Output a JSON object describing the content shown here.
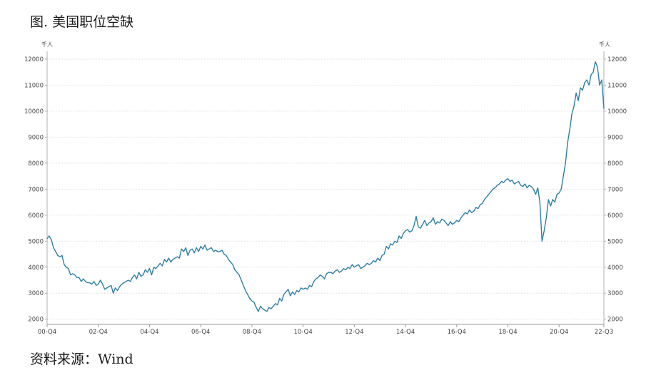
{
  "figure": {
    "title": "图. 美国职位空缺",
    "source": "资料来源：Wind"
  },
  "chart_data": {
    "type": "line",
    "title": "图. 美国职位空缺",
    "unit_left": "千人",
    "unit_right": "千人",
    "ylim": [
      1800,
      12300
    ],
    "y_ticks": [
      2000,
      3000,
      4000,
      5000,
      6000,
      7000,
      8000,
      9000,
      10000,
      11000,
      12000
    ],
    "y_tick_labels": [
      "2000",
      "3000",
      "4000",
      "5000",
      "6000",
      "7000",
      "8000",
      "9000",
      "10000",
      "11000",
      "12000"
    ],
    "x_range": [
      "2000-12",
      "2022-09"
    ],
    "x_ticks": [
      "2000-12",
      "2002-12",
      "2004-12",
      "2006-12",
      "2008-12",
      "2010-12",
      "2012-12",
      "2014-12",
      "2016-12",
      "2018-12",
      "2020-12",
      "2022-09"
    ],
    "x_tick_labels": [
      "00-Q4",
      "02-Q4",
      "04-Q4",
      "06-Q4",
      "08-Q4",
      "10-Q4",
      "12-Q4",
      "14-Q4",
      "16-Q4",
      "18-Q4",
      "20-Q4",
      "22-Q3"
    ],
    "grid": true,
    "line_color": "#2e7fa3",
    "series": [
      {
        "x": [
          "2000-12",
          "2001-01",
          "2001-02",
          "2001-03",
          "2001-04",
          "2001-05",
          "2001-06",
          "2001-07",
          "2001-08",
          "2001-09",
          "2001-10",
          "2001-11",
          "2001-12",
          "2002-01",
          "2002-02",
          "2002-03",
          "2002-04",
          "2002-05",
          "2002-06",
          "2002-07",
          "2002-08",
          "2002-09",
          "2002-10",
          "2002-11",
          "2002-12",
          "2003-01",
          "2003-02",
          "2003-03",
          "2003-04",
          "2003-05",
          "2003-06",
          "2003-07",
          "2003-08",
          "2003-09",
          "2003-10",
          "2003-11",
          "2003-12",
          "2004-01",
          "2004-02",
          "2004-03",
          "2004-04",
          "2004-05",
          "2004-06",
          "2004-07",
          "2004-08",
          "2004-09",
          "2004-10",
          "2004-11",
          "2004-12",
          "2005-01",
          "2005-02",
          "2005-03",
          "2005-04",
          "2005-05",
          "2005-06",
          "2005-07",
          "2005-08",
          "2005-09",
          "2005-10",
          "2005-11",
          "2005-12",
          "2006-01",
          "2006-02",
          "2006-03",
          "2006-04",
          "2006-05",
          "2006-06",
          "2006-07",
          "2006-08",
          "2006-09",
          "2006-10",
          "2006-11",
          "2006-12",
          "2007-01",
          "2007-02",
          "2007-03",
          "2007-04",
          "2007-05",
          "2007-06",
          "2007-07",
          "2007-08",
          "2007-09",
          "2007-10",
          "2007-11",
          "2007-12",
          "2008-01",
          "2008-02",
          "2008-03",
          "2008-04",
          "2008-05",
          "2008-06",
          "2008-07",
          "2008-08",
          "2008-09",
          "2008-10",
          "2008-11",
          "2008-12",
          "2009-01",
          "2009-02",
          "2009-03",
          "2009-04",
          "2009-05",
          "2009-06",
          "2009-07",
          "2009-08",
          "2009-09",
          "2009-10",
          "2009-11",
          "2009-12",
          "2010-01",
          "2010-02",
          "2010-03",
          "2010-04",
          "2010-05",
          "2010-06",
          "2010-07",
          "2010-08",
          "2010-09",
          "2010-10",
          "2010-11",
          "2010-12",
          "2011-01",
          "2011-02",
          "2011-03",
          "2011-04",
          "2011-05",
          "2011-06",
          "2011-07",
          "2011-08",
          "2011-09",
          "2011-10",
          "2011-11",
          "2011-12",
          "2012-01",
          "2012-02",
          "2012-03",
          "2012-04",
          "2012-05",
          "2012-06",
          "2012-07",
          "2012-08",
          "2012-09",
          "2012-10",
          "2012-11",
          "2012-12",
          "2013-01",
          "2013-02",
          "2013-03",
          "2013-04",
          "2013-05",
          "2013-06",
          "2013-07",
          "2013-08",
          "2013-09",
          "2013-10",
          "2013-11",
          "2013-12",
          "2014-01",
          "2014-02",
          "2014-03",
          "2014-04",
          "2014-05",
          "2014-06",
          "2014-07",
          "2014-08",
          "2014-09",
          "2014-10",
          "2014-11",
          "2014-12",
          "2015-01",
          "2015-02",
          "2015-03",
          "2015-04",
          "2015-05",
          "2015-06",
          "2015-07",
          "2015-08",
          "2015-09",
          "2015-10",
          "2015-11",
          "2015-12",
          "2016-01",
          "2016-02",
          "2016-03",
          "2016-04",
          "2016-05",
          "2016-06",
          "2016-07",
          "2016-08",
          "2016-09",
          "2016-10",
          "2016-11",
          "2016-12",
          "2017-01",
          "2017-02",
          "2017-03",
          "2017-04",
          "2017-05",
          "2017-06",
          "2017-07",
          "2017-08",
          "2017-09",
          "2017-10",
          "2017-11",
          "2017-12",
          "2018-01",
          "2018-02",
          "2018-03",
          "2018-04",
          "2018-05",
          "2018-06",
          "2018-07",
          "2018-08",
          "2018-09",
          "2018-10",
          "2018-11",
          "2018-12",
          "2019-01",
          "2019-02",
          "2019-03",
          "2019-04",
          "2019-05",
          "2019-06",
          "2019-07",
          "2019-08",
          "2019-09",
          "2019-10",
          "2019-11",
          "2019-12",
          "2020-01",
          "2020-02",
          "2020-03",
          "2020-04",
          "2020-05",
          "2020-06",
          "2020-07",
          "2020-08",
          "2020-09",
          "2020-10",
          "2020-11",
          "2020-12",
          "2021-01",
          "2021-02",
          "2021-03",
          "2021-04",
          "2021-05",
          "2021-06",
          "2021-07",
          "2021-08",
          "2021-09",
          "2021-10",
          "2021-11",
          "2021-12",
          "2022-01",
          "2022-02",
          "2022-03",
          "2022-04",
          "2022-05",
          "2022-06",
          "2022-07",
          "2022-08",
          "2022-09"
        ],
        "y": [
          5100,
          5200,
          5050,
          4750,
          4600,
          4450,
          4400,
          4450,
          4100,
          4000,
          3950,
          3700,
          3750,
          3700,
          3600,
          3600,
          3450,
          3550,
          3450,
          3400,
          3400,
          3350,
          3450,
          3300,
          3350,
          3500,
          3350,
          3150,
          3200,
          3250,
          3300,
          3000,
          3200,
          3100,
          3250,
          3350,
          3400,
          3450,
          3500,
          3450,
          3600,
          3700,
          3550,
          3800,
          3650,
          3700,
          3900,
          3800,
          3950,
          3700,
          4000,
          3950,
          4050,
          4150,
          4050,
          4300,
          4200,
          4350,
          4200,
          4300,
          4350,
          4400,
          4350,
          4700,
          4600,
          4750,
          4450,
          4650,
          4700,
          4550,
          4750,
          4600,
          4800,
          4700,
          4850,
          4650,
          4700,
          4750,
          4600,
          4650,
          4600,
          4600,
          4650,
          4500,
          4450,
          4300,
          4200,
          4100,
          3900,
          3800,
          3700,
          3500,
          3300,
          3100,
          2950,
          2800,
          2700,
          2650,
          2450,
          2300,
          2500,
          2400,
          2350,
          2300,
          2450,
          2400,
          2500,
          2600,
          2550,
          2800,
          2700,
          2950,
          3050,
          3150,
          2900,
          3050,
          2950,
          3100,
          3050,
          3200,
          3150,
          3200,
          3150,
          3300,
          3250,
          3450,
          3550,
          3600,
          3700,
          3650,
          3550,
          3750,
          3800,
          3800,
          3750,
          3850,
          3900,
          3800,
          3850,
          3950,
          3900,
          4000,
          3950,
          4100,
          4000,
          4050,
          4100,
          3950,
          4000,
          4050,
          4150,
          4100,
          4150,
          4250,
          4200,
          4350,
          4250,
          4450,
          4500,
          4800,
          4700,
          4900,
          4850,
          5000,
          4950,
          5200,
          5100,
          5300,
          5400,
          5450,
          5350,
          5400,
          5600,
          5950,
          5550,
          5500,
          5650,
          5800,
          5600,
          5700,
          5750,
          5900,
          5650,
          5750,
          5700,
          5850,
          5800,
          5700,
          5600,
          5750,
          5650,
          5700,
          5800,
          5750,
          5900,
          6000,
          6100,
          6050,
          6200,
          6100,
          6150,
          6300,
          6250,
          6400,
          6450,
          6600,
          6700,
          6800,
          6900,
          7000,
          7050,
          7150,
          7200,
          7300,
          7250,
          7350,
          7400,
          7300,
          7350,
          7200,
          7250,
          7300,
          7150,
          7100,
          7200,
          7050,
          7150,
          7100,
          7000,
          6800,
          7050,
          6500,
          5000,
          5400,
          5900,
          6600,
          6350,
          6600,
          6500,
          6800,
          6850,
          7000,
          7500,
          8000,
          8800,
          9300,
          9900,
          10200,
          10700,
          10400,
          10900,
          10800,
          11100,
          11200,
          11000,
          11400,
          11500,
          11900,
          11700,
          11000,
          11200,
          10100
        ]
      }
    ]
  }
}
